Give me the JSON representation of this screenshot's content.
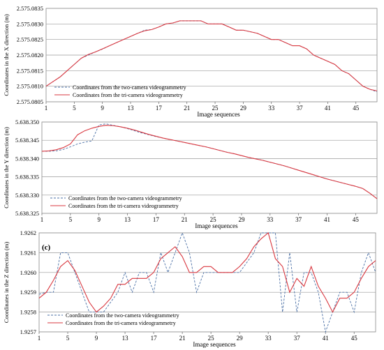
{
  "chart_data": [
    {
      "type": "line",
      "panel_label": "",
      "ylabel": "Coordinates  in the X direction (m)",
      "xlabel": "Image sequences",
      "xticks": [
        "1",
        "5",
        "9",
        "13",
        "17",
        "21",
        "25",
        "29",
        "33",
        "37",
        "41",
        "45"
      ],
      "yticks": [
        "2.575.0805",
        "2.575.0810",
        "2.575.0815",
        "2.575.0820",
        "2.575.0825",
        "2.575.0830",
        "2.575.0835"
      ],
      "ylim": [
        2575.0805,
        2575.0835
      ],
      "xlim": [
        1,
        48
      ],
      "grid": "horizontal",
      "legend_position": "bottom-left",
      "x": [
        1,
        2,
        3,
        4,
        5,
        6,
        7,
        8,
        9,
        10,
        11,
        12,
        13,
        14,
        15,
        16,
        17,
        18,
        19,
        20,
        21,
        22,
        23,
        24,
        25,
        26,
        27,
        28,
        29,
        30,
        31,
        32,
        33,
        34,
        35,
        36,
        37,
        38,
        39,
        40,
        41,
        42,
        43,
        44,
        45,
        46,
        47,
        48
      ],
      "series": [
        {
          "name": "Coordinates from the two-camera videogrammetry",
          "style": "dashed",
          "color": "#4a6fa5",
          "values": [
            2575.081,
            2575.08115,
            2575.0813,
            2575.0815,
            2575.0817,
            2575.0819,
            2575.082,
            2575.0821,
            2575.08219,
            2575.0823,
            2575.0824,
            2575.0825,
            2575.0826,
            2575.0827,
            2575.0828,
            2575.08282,
            2575.0829,
            2575.083,
            2575.08303,
            2575.0831,
            2575.0831,
            2575.0831,
            2575.0831,
            2575.083,
            2575.083,
            2575.083,
            2575.0829,
            2575.0828,
            2575.0828,
            2575.08275,
            2575.0827,
            2575.0826,
            2575.0825,
            2575.0825,
            2575.0824,
            2575.0823,
            2575.0823,
            2575.0822,
            2575.082,
            2575.0819,
            2575.0818,
            2575.0817,
            2575.0815,
            2575.0814,
            2575.0812,
            2575.081,
            2575.0809,
            2575.08082
          ]
        },
        {
          "name": "Coordinates from the tri-camera videogrammetry",
          "style": "solid",
          "color": "#d9373f",
          "values": [
            2575.081,
            2575.08115,
            2575.0813,
            2575.0815,
            2575.0817,
            2575.0819,
            2575.08202,
            2575.0821,
            2575.0822,
            2575.0823,
            2575.0824,
            2575.0825,
            2575.0826,
            2575.0827,
            2575.08278,
            2575.08282,
            2575.0829,
            2575.083,
            2575.08303,
            2575.0831,
            2575.0831,
            2575.0831,
            2575.0831,
            2575.083,
            2575.083,
            2575.083,
            2575.0829,
            2575.0828,
            2575.0828,
            2575.08275,
            2575.0827,
            2575.0826,
            2575.0825,
            2575.0825,
            2575.0824,
            2575.0823,
            2575.0823,
            2575.0822,
            2575.082,
            2575.0819,
            2575.0818,
            2575.0817,
            2575.0815,
            2575.0814,
            2575.0812,
            2575.081,
            2575.0809,
            2575.08085
          ]
        }
      ]
    },
    {
      "type": "line",
      "panel_label": "",
      "ylabel": "Coordinates  in the Y direction (m)",
      "xlabel": "Image sequences",
      "xticks": [
        "1",
        "5",
        "9",
        "13",
        "17",
        "21",
        "25",
        "29",
        "33",
        "37",
        "41",
        "45"
      ],
      "yticks": [
        "5.638.325",
        "5.638.330",
        "5.638.335",
        "5.638.340",
        "5.638.345",
        "5.638.350"
      ],
      "ylim": [
        5638.325,
        5638.35
      ],
      "xlim": [
        1,
        48
      ],
      "grid": "horizontal",
      "legend_position": "bottom-left",
      "x": [
        1,
        2,
        3,
        4,
        5,
        6,
        7,
        8,
        9,
        10,
        11,
        12,
        13,
        14,
        15,
        16,
        17,
        18,
        19,
        20,
        21,
        22,
        23,
        24,
        25,
        26,
        27,
        28,
        29,
        30,
        31,
        32,
        33,
        34,
        35,
        36,
        37,
        38,
        39,
        40,
        41,
        42,
        43,
        44,
        45,
        46,
        47,
        48
      ],
      "series": [
        {
          "name": "Coordinates from the two-camera videogrammetry",
          "style": "dashed",
          "color": "#4a6fa5",
          "values": [
            5638.342,
            5638.342,
            5638.3421,
            5638.3425,
            5638.3432,
            5638.344,
            5638.3445,
            5638.3448,
            5638.3492,
            5638.3495,
            5638.3491,
            5638.3487,
            5638.3482,
            5638.3476,
            5638.347,
            5638.3465,
            5638.346,
            5638.3456,
            5638.3452,
            5638.3448,
            5638.3444,
            5638.344,
            5638.3436,
            5638.3432,
            5638.3427,
            5638.3422,
            5638.3417,
            5638.3413,
            5638.3408,
            5638.3403,
            5638.3399,
            5638.3395,
            5638.339,
            5638.3385,
            5638.338,
            5638.3374,
            5638.3368,
            5638.3362,
            5638.3356,
            5638.335,
            5638.3344,
            5638.3339,
            5638.3334,
            5638.3329,
            5638.3324,
            5638.3318,
            5638.3305,
            5638.329
          ]
        },
        {
          "name": "Coordinates from the tri-camera videogrammetry",
          "style": "solid",
          "color": "#d9373f",
          "values": [
            5638.342,
            5638.3421,
            5638.3424,
            5638.343,
            5638.344,
            5638.3465,
            5638.3476,
            5638.3483,
            5638.3488,
            5638.3491,
            5638.349,
            5638.3487,
            5638.3483,
            5638.3478,
            5638.3472,
            5638.3466,
            5638.3461,
            5638.3456,
            5638.3452,
            5638.3448,
            5638.3444,
            5638.344,
            5638.3436,
            5638.3432,
            5638.3427,
            5638.3422,
            5638.3417,
            5638.3413,
            5638.3408,
            5638.3403,
            5638.3399,
            5638.3395,
            5638.339,
            5638.3385,
            5638.338,
            5638.3374,
            5638.3368,
            5638.3362,
            5638.3356,
            5638.335,
            5638.3344,
            5638.3339,
            5638.3334,
            5638.3329,
            5638.3324,
            5638.3318,
            5638.3305,
            5638.329
          ]
        }
      ]
    },
    {
      "type": "line",
      "panel_label": "(c)",
      "ylabel": "Coordinates  in the Z direction (m)",
      "xlabel": "Image sequences",
      "xticks": [
        "1",
        "5",
        "9",
        "13",
        "17",
        "21",
        "25",
        "29",
        "33",
        "37",
        "41",
        "45"
      ],
      "yticks": [
        "1.9257",
        "1.9258",
        "1.9259",
        "1.9260",
        "1.9261",
        "1.9262"
      ],
      "ylim": [
        1.9257,
        1.9262
      ],
      "xlim": [
        1,
        48
      ],
      "grid": "horizontal",
      "legend_position": "bottom-left",
      "x": [
        1,
        2,
        3,
        4,
        5,
        6,
        7,
        8,
        9,
        10,
        11,
        12,
        13,
        14,
        15,
        16,
        17,
        18,
        19,
        20,
        21,
        22,
        23,
        24,
        25,
        26,
        27,
        28,
        29,
        30,
        31,
        32,
        33,
        34,
        35,
        36,
        37,
        38,
        39,
        40,
        41,
        42,
        43,
        44,
        45,
        46,
        47,
        48
      ],
      "series": [
        {
          "name": "Coordinates from the two-camera videogrammetry",
          "style": "dashed",
          "color": "#4a6fa5",
          "values": [
            1.92589,
            1.9259,
            1.9259,
            1.9261,
            1.9261,
            1.926,
            1.9259,
            1.9258,
            1.9258,
            1.9258,
            1.92585,
            1.9259,
            1.926,
            1.9259,
            1.926,
            1.926,
            1.9259,
            1.9261,
            1.926,
            1.9261,
            1.9262,
            1.9261,
            1.9259,
            1.926,
            1.926,
            1.926,
            1.926,
            1.926,
            1.926,
            1.92605,
            1.9261,
            1.9262,
            1.9262,
            1.9262,
            1.9258,
            1.9261,
            1.9258,
            1.926,
            1.926,
            1.9259,
            1.9257,
            1.9258,
            1.9259,
            1.9259,
            1.9258,
            1.926,
            1.9261,
            1.926
          ]
        },
        {
          "name": "Coordinates from the tri-camera videogrammetry",
          "style": "solid",
          "color": "#d9373f",
          "values": [
            1.92587,
            1.9259,
            1.92596,
            1.92603,
            1.92606,
            1.92601,
            1.92593,
            1.92585,
            1.9258,
            1.92583,
            1.92587,
            1.92594,
            1.92594,
            1.92597,
            1.92597,
            1.92597,
            1.926,
            1.92607,
            1.9261,
            1.92613,
            1.92608,
            1.926,
            1.926,
            1.92603,
            1.92603,
            1.926,
            1.926,
            1.926,
            1.92603,
            1.92607,
            1.92613,
            1.92617,
            1.9262,
            1.92607,
            1.92603,
            1.9259,
            1.92597,
            1.92593,
            1.92603,
            1.92593,
            1.92587,
            1.9258,
            1.92587,
            1.92587,
            1.9259,
            1.92597,
            1.92603,
            1.92606
          ]
        }
      ]
    }
  ]
}
